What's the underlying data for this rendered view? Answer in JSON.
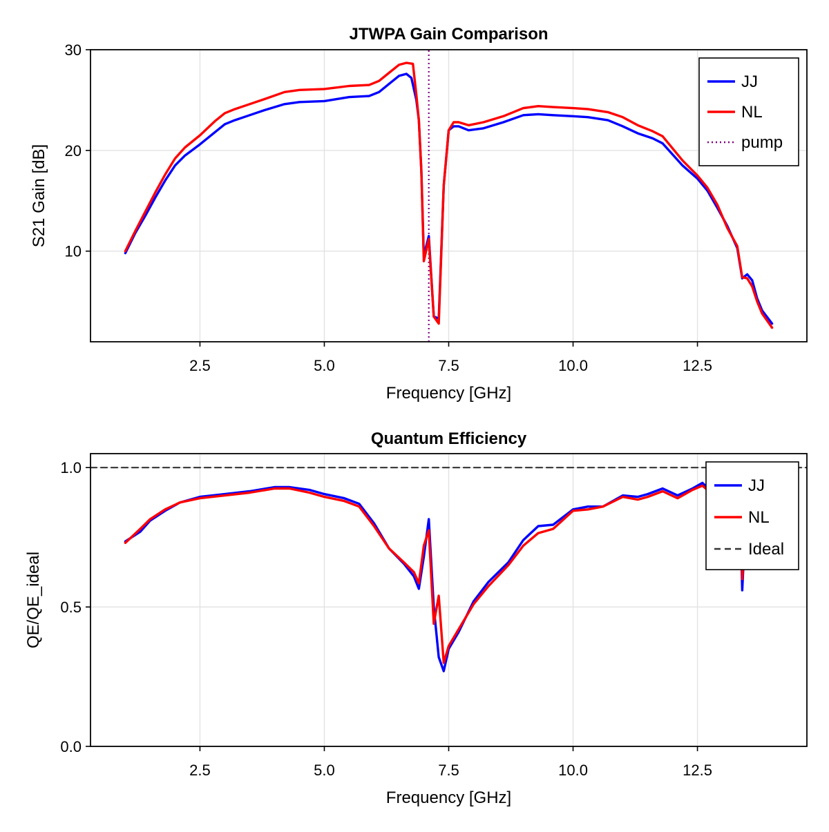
{
  "chart_data": [
    {
      "type": "line",
      "title": "JTWPA Gain Comparison",
      "xlabel": "Frequency [GHz]",
      "ylabel": "S21 Gain [dB]",
      "xlim": [
        0.3,
        14.7
      ],
      "ylim": [
        1.0,
        30.0
      ],
      "xticks": [
        2.5,
        5.0,
        7.5,
        10.0,
        12.5
      ],
      "xtick_labels": [
        "2.5",
        "5.0",
        "7.5",
        "10.0",
        "12.5"
      ],
      "yticks": [
        10,
        20,
        30
      ],
      "ytick_labels": [
        "10",
        "20",
        "30"
      ],
      "grid": true,
      "legend_position": "top-right",
      "series": [
        {
          "name": "JJ",
          "color": "#0000ff",
          "style": "solid",
          "x": [
            1.0,
            1.2,
            1.4,
            1.6,
            1.8,
            2.0,
            2.2,
            2.5,
            2.8,
            3.0,
            3.2,
            3.5,
            3.8,
            4.2,
            4.5,
            5.0,
            5.5,
            5.9,
            6.1,
            6.3,
            6.5,
            6.65,
            6.75,
            6.85,
            6.9,
            6.95,
            7.0,
            7.1,
            7.2,
            7.3,
            7.4,
            7.5,
            7.6,
            7.7,
            7.9,
            8.2,
            8.6,
            9.0,
            9.3,
            9.6,
            10.0,
            10.3,
            10.7,
            11.0,
            11.3,
            11.6,
            11.8,
            12.0,
            12.2,
            12.5,
            12.7,
            12.9,
            13.1,
            13.3,
            13.4,
            13.5,
            13.6,
            13.7,
            13.8,
            14.0
          ],
          "y": [
            9.8,
            11.8,
            13.5,
            15.3,
            17.0,
            18.5,
            19.5,
            20.6,
            21.8,
            22.6,
            23.0,
            23.5,
            24.0,
            24.6,
            24.8,
            24.9,
            25.3,
            25.4,
            25.8,
            26.6,
            27.4,
            27.6,
            27.2,
            25.0,
            23.0,
            18.0,
            9.5,
            11.5,
            3.5,
            3.3,
            16.5,
            22.0,
            22.4,
            22.4,
            22.0,
            22.2,
            22.8,
            23.5,
            23.6,
            23.5,
            23.4,
            23.3,
            23.0,
            22.4,
            21.7,
            21.2,
            20.7,
            19.6,
            18.5,
            17.2,
            16.0,
            14.3,
            12.5,
            10.3,
            7.3,
            7.7,
            7.1,
            5.3,
            4.1,
            2.8
          ]
        },
        {
          "name": "NL",
          "color": "#ff0000",
          "style": "solid",
          "x": [
            1.0,
            1.2,
            1.4,
            1.6,
            1.8,
            2.0,
            2.2,
            2.5,
            2.8,
            3.0,
            3.2,
            3.5,
            3.8,
            4.2,
            4.5,
            5.0,
            5.5,
            5.9,
            6.1,
            6.3,
            6.5,
            6.65,
            6.78,
            6.85,
            6.9,
            6.95,
            7.0,
            7.1,
            7.2,
            7.3,
            7.4,
            7.5,
            7.6,
            7.7,
            7.9,
            8.2,
            8.6,
            9.0,
            9.3,
            9.6,
            10.0,
            10.3,
            10.7,
            11.0,
            11.3,
            11.6,
            11.8,
            12.0,
            12.2,
            12.5,
            12.7,
            12.9,
            13.1,
            13.3,
            13.4,
            13.5,
            13.6,
            13.7,
            13.8,
            14.0
          ],
          "y": [
            10.0,
            12.0,
            13.9,
            15.8,
            17.6,
            19.2,
            20.3,
            21.5,
            22.9,
            23.7,
            24.1,
            24.6,
            25.1,
            25.8,
            26.0,
            26.1,
            26.4,
            26.5,
            26.9,
            27.7,
            28.5,
            28.7,
            28.6,
            25.5,
            23.0,
            18.0,
            9.0,
            11.2,
            3.5,
            2.8,
            16.5,
            22.0,
            22.8,
            22.8,
            22.5,
            22.8,
            23.4,
            24.2,
            24.4,
            24.3,
            24.2,
            24.1,
            23.8,
            23.3,
            22.5,
            21.9,
            21.4,
            20.2,
            19.0,
            17.5,
            16.3,
            14.6,
            12.3,
            10.5,
            7.4,
            7.3,
            6.5,
            5.0,
            3.8,
            2.4
          ]
        },
        {
          "name": "pump",
          "color": "#800080",
          "style": "dotted",
          "x": [
            7.1,
            7.1
          ],
          "y": [
            1.0,
            30.0
          ]
        }
      ]
    },
    {
      "type": "line",
      "title": "Quantum Efficiency",
      "xlabel": "Frequency [GHz]",
      "ylabel": "QE/QE_ideal",
      "xlim": [
        0.3,
        14.7
      ],
      "ylim": [
        0.0,
        1.05
      ],
      "xticks": [
        2.5,
        5.0,
        7.5,
        10.0,
        12.5
      ],
      "xtick_labels": [
        "2.5",
        "5.0",
        "7.5",
        "10.0",
        "12.5"
      ],
      "yticks": [
        0.0,
        0.5,
        1.0
      ],
      "ytick_labels": [
        "0.0",
        "0.5",
        "1.0"
      ],
      "grid": true,
      "legend_position": "top-right",
      "series": [
        {
          "name": "JJ",
          "color": "#0000ff",
          "style": "solid",
          "x": [
            1.0,
            1.3,
            1.5,
            1.8,
            2.1,
            2.5,
            3.0,
            3.5,
            4.0,
            4.3,
            4.7,
            5.0,
            5.4,
            5.7,
            6.0,
            6.3,
            6.6,
            6.8,
            6.9,
            7.0,
            7.1,
            7.2,
            7.3,
            7.4,
            7.5,
            7.7,
            8.0,
            8.3,
            8.7,
            9.0,
            9.3,
            9.6,
            10.0,
            10.3,
            10.6,
            11.0,
            11.3,
            11.5,
            11.8,
            12.1,
            12.4,
            12.6,
            12.8,
            13.0,
            13.2,
            13.35,
            13.4,
            13.45
          ],
          "y": [
            0.735,
            0.77,
            0.81,
            0.845,
            0.875,
            0.895,
            0.905,
            0.915,
            0.93,
            0.93,
            0.92,
            0.905,
            0.89,
            0.87,
            0.8,
            0.71,
            0.655,
            0.61,
            0.565,
            0.68,
            0.815,
            0.5,
            0.32,
            0.27,
            0.35,
            0.41,
            0.52,
            0.59,
            0.66,
            0.74,
            0.79,
            0.795,
            0.85,
            0.86,
            0.86,
            0.9,
            0.895,
            0.905,
            0.925,
            0.9,
            0.925,
            0.945,
            0.91,
            0.93,
            0.935,
            0.9,
            0.56,
            0.75
          ]
        },
        {
          "name": "NL",
          "color": "#ff0000",
          "style": "solid",
          "x": [
            1.0,
            1.3,
            1.5,
            1.8,
            2.1,
            2.5,
            3.0,
            3.5,
            4.0,
            4.3,
            4.7,
            5.0,
            5.4,
            5.7,
            6.0,
            6.3,
            6.6,
            6.8,
            6.9,
            7.0,
            7.1,
            7.2,
            7.3,
            7.4,
            7.5,
            7.7,
            8.0,
            8.3,
            8.7,
            9.0,
            9.3,
            9.6,
            10.0,
            10.3,
            10.6,
            11.0,
            11.3,
            11.5,
            11.8,
            12.1,
            12.4,
            12.6,
            12.8,
            13.0,
            13.2,
            13.35,
            13.4,
            13.45
          ],
          "y": [
            0.73,
            0.78,
            0.815,
            0.85,
            0.875,
            0.89,
            0.9,
            0.91,
            0.925,
            0.925,
            0.91,
            0.895,
            0.88,
            0.86,
            0.79,
            0.71,
            0.66,
            0.625,
            0.585,
            0.72,
            0.775,
            0.44,
            0.54,
            0.3,
            0.36,
            0.42,
            0.51,
            0.575,
            0.65,
            0.72,
            0.765,
            0.78,
            0.845,
            0.85,
            0.86,
            0.895,
            0.885,
            0.895,
            0.915,
            0.89,
            0.92,
            0.935,
            0.905,
            0.92,
            0.925,
            0.9,
            0.6,
            0.75
          ]
        },
        {
          "name": "Ideal",
          "color": "#333333",
          "style": "dashed",
          "x": [
            0.3,
            14.7
          ],
          "y": [
            1.0,
            1.0
          ]
        }
      ]
    }
  ]
}
